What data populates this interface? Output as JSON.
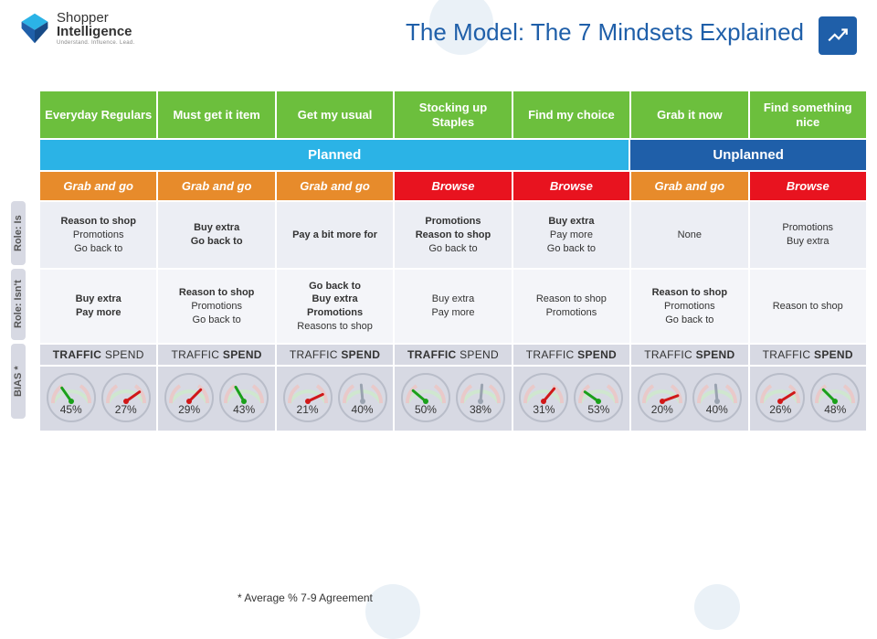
{
  "brand": {
    "name1": "Shopper",
    "name2": "Intelligence",
    "tagline": "Understand. Influence. Lead."
  },
  "title": "The Model: The 7 Mindsets Explained",
  "footnote": "* Average % 7-9 Agreement",
  "colors": {
    "green": "#6cbf3d",
    "cyan": "#2bb3e6",
    "blue": "#1f5fa9",
    "orange": "#e78b2b",
    "red": "#e8131f",
    "band1": "#eceef4",
    "band2": "#f4f5f9",
    "band3": "#d7d9e3",
    "needle_green": "#1aa01a",
    "needle_red": "#d01818",
    "needle_neutral": "#9aa3b0"
  },
  "side": {
    "is": "Role: Is",
    "isnt": "Role: Isn't",
    "bias": "BIAS *"
  },
  "plan": {
    "planned": "Planned",
    "unplanned": "Unplanned"
  },
  "ts_label": {
    "traffic": "TRAFFIC",
    "spend": "SPEND"
  },
  "mindsets": [
    {
      "name": "Everyday Regulars",
      "mode": "Grab and go",
      "mode_color": "orange",
      "is": [
        {
          "t": "Reason to shop",
          "b": true
        },
        {
          "t": "Promotions",
          "b": false
        },
        {
          "t": "Go back to",
          "b": false
        }
      ],
      "isnt": [
        {
          "t": "Buy extra",
          "b": true
        },
        {
          "t": "Pay more",
          "b": true
        }
      ],
      "ts": {
        "traffic_bold": true,
        "spend_bold": false
      },
      "traffic": {
        "pct": 45,
        "angle": -35,
        "needle": "green"
      },
      "spend": {
        "pct": 27,
        "angle": 55,
        "needle": "red"
      }
    },
    {
      "name": "Must get it item",
      "mode": "Grab and go",
      "mode_color": "orange",
      "is": [
        {
          "t": "Buy extra",
          "b": true
        },
        {
          "t": "Go back to",
          "b": true
        }
      ],
      "isnt": [
        {
          "t": "Reason to shop",
          "b": true
        },
        {
          "t": "Promotions",
          "b": false
        },
        {
          "t": "Go back to",
          "b": false
        }
      ],
      "ts": {
        "traffic_bold": false,
        "spend_bold": true
      },
      "traffic": {
        "pct": 29,
        "angle": 45,
        "needle": "red"
      },
      "spend": {
        "pct": 43,
        "angle": -30,
        "needle": "green"
      }
    },
    {
      "name": "Get my usual",
      "mode": "Grab and go",
      "mode_color": "orange",
      "is": [
        {
          "t": "Pay a bit more for",
          "b": true
        }
      ],
      "isnt": [
        {
          "t": "Go back to",
          "b": true
        },
        {
          "t": "Buy extra",
          "b": true
        },
        {
          "t": "Promotions",
          "b": true
        },
        {
          "t": "Reasons to shop",
          "b": false
        }
      ],
      "ts": {
        "traffic_bold": false,
        "spend_bold": true
      },
      "traffic": {
        "pct": 21,
        "angle": 65,
        "needle": "red"
      },
      "spend": {
        "pct": 40,
        "angle": -5,
        "needle": "neutral"
      }
    },
    {
      "name": "Stocking up Staples",
      "mode": "Browse",
      "mode_color": "red",
      "is": [
        {
          "t": "Promotions",
          "b": true
        },
        {
          "t": "Reason to shop",
          "b": true
        },
        {
          "t": "Go back to",
          "b": false
        }
      ],
      "isnt": [
        {
          "t": "Buy extra",
          "b": false
        },
        {
          "t": "Pay more",
          "b": false
        }
      ],
      "ts": {
        "traffic_bold": true,
        "spend_bold": false
      },
      "traffic": {
        "pct": 50,
        "angle": -50,
        "needle": "green"
      },
      "spend": {
        "pct": 38,
        "angle": 5,
        "needle": "neutral"
      }
    },
    {
      "name": "Find my choice",
      "mode": "Browse",
      "mode_color": "red",
      "is": [
        {
          "t": "Buy extra",
          "b": true
        },
        {
          "t": "Pay more",
          "b": false
        },
        {
          "t": "Go back to",
          "b": false
        }
      ],
      "isnt": [
        {
          "t": "Reason to shop",
          "b": false
        },
        {
          "t": "Promotions",
          "b": false
        }
      ],
      "ts": {
        "traffic_bold": false,
        "spend_bold": true
      },
      "traffic": {
        "pct": 31,
        "angle": 40,
        "needle": "red"
      },
      "spend": {
        "pct": 53,
        "angle": -55,
        "needle": "green"
      }
    },
    {
      "name": "Grab it now",
      "mode": "Grab and go",
      "mode_color": "orange",
      "is": [
        {
          "t": "None",
          "b": false
        }
      ],
      "isnt": [
        {
          "t": "Reason to shop",
          "b": true
        },
        {
          "t": "Promotions",
          "b": false
        },
        {
          "t": "Go back to",
          "b": false
        }
      ],
      "ts": {
        "traffic_bold": false,
        "spend_bold": true
      },
      "traffic": {
        "pct": 20,
        "angle": 70,
        "needle": "red"
      },
      "spend": {
        "pct": 40,
        "angle": -5,
        "needle": "neutral"
      }
    },
    {
      "name": "Find something nice",
      "mode": "Browse",
      "mode_color": "red",
      "is": [
        {
          "t": "Promotions",
          "b": false
        },
        {
          "t": "Buy extra",
          "b": false
        }
      ],
      "isnt": [
        {
          "t": "Reason to shop",
          "b": false
        }
      ],
      "ts": {
        "traffic_bold": false,
        "spend_bold": true
      },
      "traffic": {
        "pct": 26,
        "angle": 58,
        "needle": "red"
      },
      "spend": {
        "pct": 48,
        "angle": -45,
        "needle": "green"
      }
    }
  ]
}
